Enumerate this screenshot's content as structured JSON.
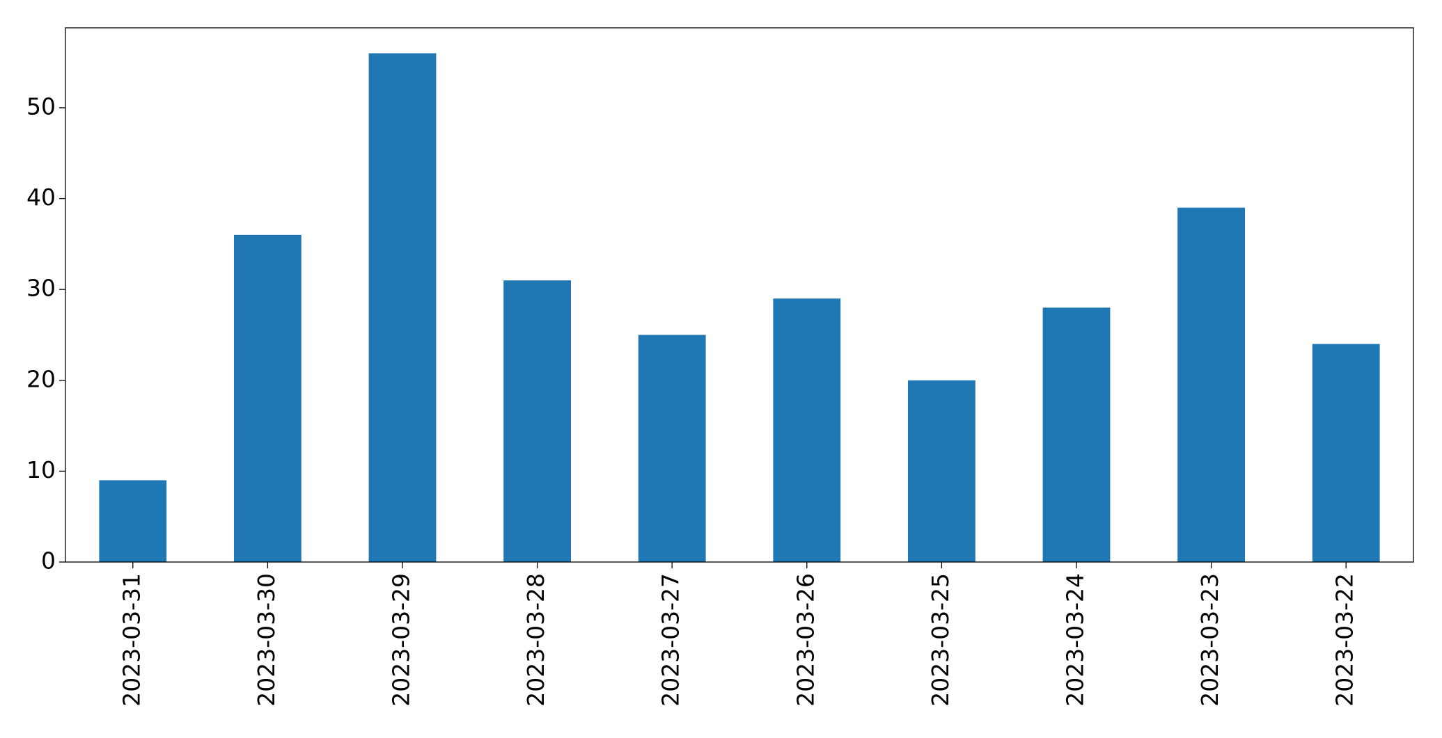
{
  "chart_data": {
    "type": "bar",
    "categories": [
      "2023-03-31",
      "2023-03-30",
      "2023-03-29",
      "2023-03-28",
      "2023-03-27",
      "2023-03-26",
      "2023-03-25",
      "2023-03-24",
      "2023-03-23",
      "2023-03-22"
    ],
    "values": [
      9,
      36,
      56,
      31,
      25,
      29,
      20,
      28,
      39,
      24
    ],
    "color": "#1f77b4",
    "ylim": [
      0,
      58.8
    ],
    "yticks": [
      0,
      10,
      20,
      30,
      40,
      50
    ],
    "grid": false
  }
}
